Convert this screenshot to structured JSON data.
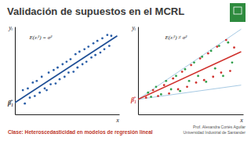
{
  "slide": {
    "title": "Validación de supuestos en el MCRL",
    "class_label": "Clase: Heteroscedasticidad en modelos de regresión lineal",
    "author": "Prof. Alexandra Cortés Aguilar",
    "university": "Universidad Industrial de Santander"
  },
  "chart_data": [
    {
      "type": "scatter",
      "x_label": "x",
      "y_label": "yᵢ",
      "xlim": [
        0,
        10.5
      ],
      "ylim": [
        0,
        10.5
      ],
      "xticks": [],
      "yticks": [],
      "tick_labels": false,
      "grid": false,
      "annotations": [
        {
          "text": "E(εᵢ²) = σ²",
          "x": 2.6,
          "y": 9.3,
          "color": "#222222"
        },
        {
          "text": "β̂₁",
          "x": 0,
          "y": 1.4,
          "color": "#222222"
        }
      ],
      "series": [
        {
          "type": "scatter",
          "marker": "circle",
          "color": "#2b5fa8",
          "x": [
            0.8,
            1.0,
            1.3,
            1.5,
            1.8,
            2.0,
            2.2,
            2.5,
            2.7,
            3.0,
            3.2,
            3.4,
            3.6,
            3.9,
            4.1,
            4.3,
            4.5,
            4.8,
            5.0,
            5.2,
            5.4,
            5.6,
            5.9,
            6.1,
            6.3,
            6.5,
            6.8,
            7.0,
            7.2,
            7.4,
            7.7,
            7.9,
            8.1,
            8.3,
            8.6,
            8.8,
            9.0,
            9.3,
            9.5,
            9.7
          ],
          "values": [
            2.9,
            1.3,
            3.1,
            2.0,
            3.8,
            2.2,
            4.0,
            2.6,
            4.5,
            3.1,
            2.9,
            5.0,
            3.6,
            5.3,
            3.7,
            5.6,
            4.2,
            6.0,
            4.5,
            6.3,
            5.0,
            6.6,
            5.1,
            7.2,
            5.6,
            7.5,
            6.0,
            7.8,
            6.3,
            8.1,
            6.8,
            8.5,
            7.1,
            8.8,
            7.4,
            9.1,
            7.8,
            9.5,
            8.2,
            9.4
          ]
        },
        {
          "type": "line",
          "line_style": "solid",
          "color": "#1f4f96",
          "x": [
            0,
            10.3
          ],
          "values": [
            1.4,
            9.4
          ]
        }
      ]
    },
    {
      "type": "scatter",
      "x_label": "x",
      "y_label": "yᵢ",
      "xlim": [
        0,
        10.5
      ],
      "ylim": [
        0,
        10.5
      ],
      "xticks": [],
      "yticks": [],
      "tick_labels": false,
      "grid": false,
      "annotations": [
        {
          "text": "E(εᵢ²) ≠ σ²",
          "x": 3.8,
          "y": 9.3,
          "color": "#222222"
        },
        {
          "text": "β̂₁",
          "x": 0,
          "y": 1.8,
          "color": "#d0312d"
        }
      ],
      "series": [
        {
          "type": "line",
          "line_style": "solid",
          "color": "#9cc3e0",
          "x": [
            0,
            10.3
          ],
          "values": [
            1.8,
            10.2
          ]
        },
        {
          "type": "line",
          "line_style": "solid",
          "color": "#9cc3e0",
          "x": [
            0,
            10.3
          ],
          "values": [
            1.8,
            3.5
          ]
        },
        {
          "type": "scatter",
          "marker": "circle",
          "color": "#d0312d",
          "x": [
            0.8,
            1.5,
            2.0,
            2.6,
            3.1,
            3.5,
            4.0,
            4.4,
            4.9,
            5.3,
            5.8,
            6.2,
            6.6,
            7.0,
            7.5,
            7.9,
            8.3,
            8.8,
            9.2,
            9.6
          ],
          "values": [
            2.0,
            2.9,
            2.2,
            3.5,
            2.5,
            4.3,
            3.0,
            5.1,
            3.3,
            5.9,
            3.8,
            6.7,
            4.1,
            7.3,
            4.5,
            8.1,
            5.0,
            8.9,
            5.2,
            8.0
          ]
        },
        {
          "type": "scatter",
          "marker": "circle",
          "color": "#2e9e4a",
          "x": [
            1.0,
            1.3,
            1.8,
            2.3,
            2.8,
            3.3,
            3.8,
            4.2,
            4.7,
            5.1,
            5.6,
            6.0,
            6.4,
            6.8,
            7.3,
            7.7,
            8.1,
            8.5,
            9.0,
            9.4
          ],
          "values": [
            2.6,
            2.1,
            3.3,
            2.4,
            4.0,
            3.0,
            4.6,
            2.8,
            5.4,
            4.0,
            6.2,
            4.6,
            6.9,
            3.9,
            7.6,
            5.5,
            8.2,
            4.6,
            8.6,
            6.2
          ]
        },
        {
          "type": "line",
          "line_style": "solid",
          "color": "#d0312d",
          "x": [
            0,
            10.3
          ],
          "values": [
            1.8,
            7.5
          ]
        }
      ]
    }
  ]
}
